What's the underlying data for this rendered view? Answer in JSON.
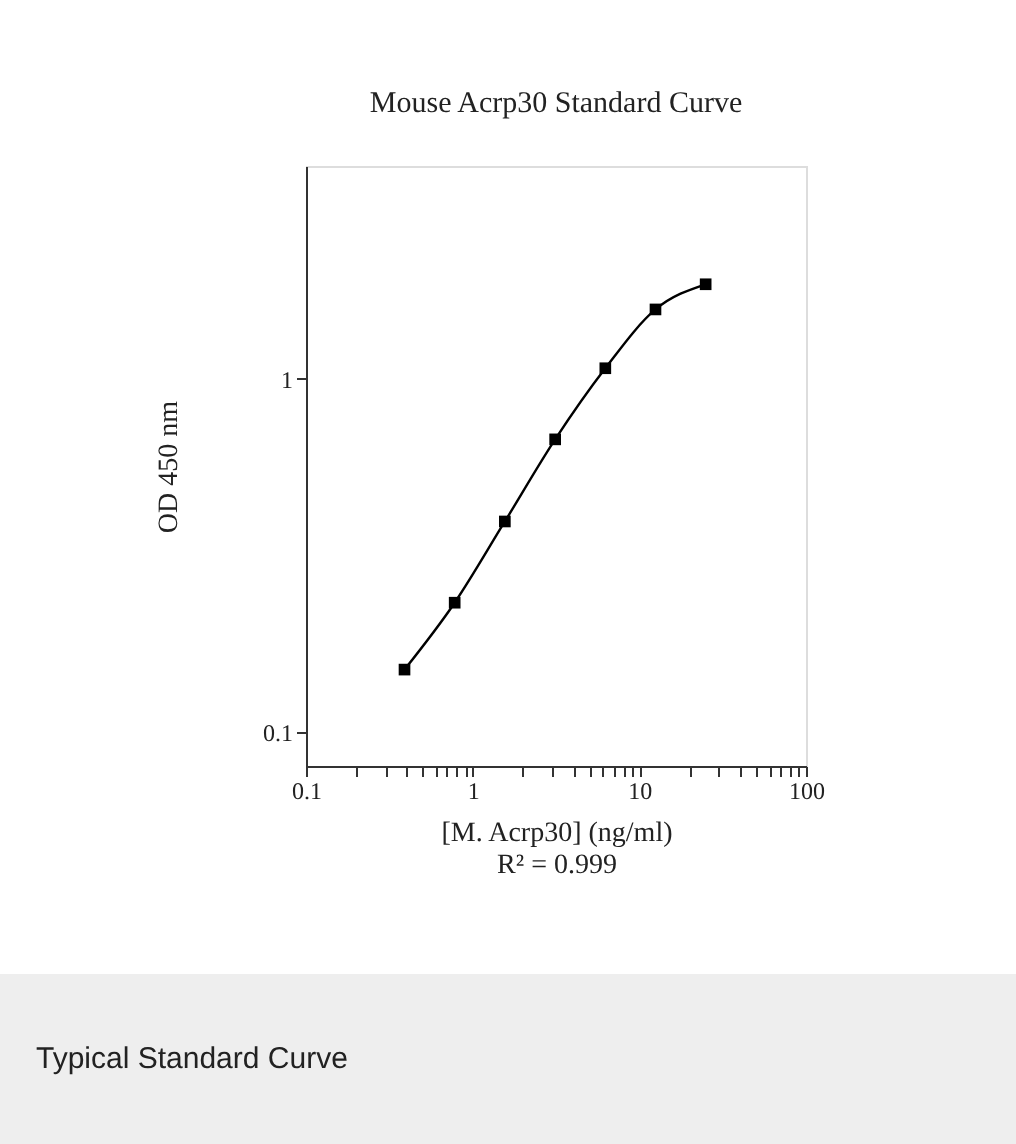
{
  "chart_data": {
    "type": "line",
    "title": "Mouse Acrp30 Standard Curve",
    "xlabel": "[M. Acrp30] (ng/ml)",
    "ylabel": "OD 450 nm",
    "log": "xy",
    "xlim": [
      0.1,
      100
    ],
    "ylim": [
      0.08,
      4
    ],
    "xticks": [
      0.1,
      {
        "value": 0.2,
        "label": null
      },
      {
        "value": 0.3,
        "label": null
      },
      {
        "value": 0.4,
        "label": null
      },
      {
        "value": 0.5,
        "label": null
      },
      {
        "value": 0.6,
        "label": null
      },
      {
        "value": 0.7,
        "label": null
      },
      {
        "value": 0.8,
        "label": null
      },
      {
        "value": 0.9,
        "label": null
      },
      1,
      {
        "value": 2,
        "label": null
      },
      {
        "value": 3,
        "label": null
      },
      {
        "value": 4,
        "label": null
      },
      {
        "value": 5,
        "label": null
      },
      {
        "value": 6,
        "label": null
      },
      {
        "value": 7,
        "label": null
      },
      {
        "value": 8,
        "label": null
      },
      {
        "value": 9,
        "label": null
      },
      10,
      {
        "value": 20,
        "label": null
      },
      {
        "value": 30,
        "label": null
      },
      {
        "value": 40,
        "label": null
      },
      {
        "value": 50,
        "label": null
      },
      {
        "value": 60,
        "label": null
      },
      {
        "value": 70,
        "label": null
      },
      {
        "value": 80,
        "label": null
      },
      {
        "value": 90,
        "label": null
      },
      100
    ],
    "yticks": [
      0.1,
      1
    ],
    "grid": false,
    "marker": "square",
    "line_style": "solid",
    "series": [
      {
        "color": "#000000",
        "x": [
          0.39,
          0.78,
          1.56,
          3.125,
          6.25,
          12.5,
          25
        ],
        "values": [
          0.15,
          0.232,
          0.394,
          0.673,
          1.07,
          1.57,
          1.85
        ]
      }
    ],
    "annotations": [
      "R² = 0.999",
      "Typical Standard Curve"
    ]
  }
}
